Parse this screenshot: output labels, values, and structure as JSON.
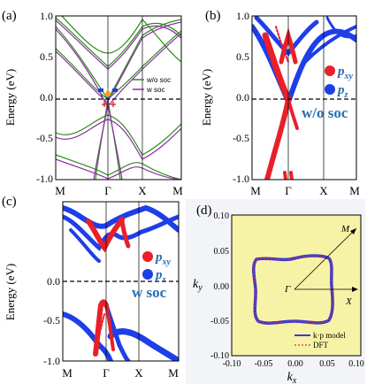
{
  "panels": {
    "a": {
      "letter": "(a)",
      "ylabel": "Energy (eV)",
      "yticks": [
        "1.0",
        "0.5",
        "0.0",
        "-0.5",
        "-1.0"
      ],
      "xticks": [
        "M",
        "Γ",
        "X",
        "M"
      ],
      "legend": [
        "w/o soc",
        "w soc"
      ],
      "colors": {
        "wo_soc": "#2e8b1e",
        "w_soc": "#8b2fa0",
        "marker_blue": "#1f3fd8",
        "marker_red": "#e5322d"
      }
    },
    "b": {
      "letter": "(b)",
      "yticks": [
        "1.0",
        "0.5",
        "0.0",
        "-0.5",
        "-1.0"
      ],
      "xticks": [
        "M",
        "Γ",
        "X",
        "M"
      ],
      "legend_pxy_main": "p",
      "legend_pxy_sub": "xy",
      "legend_pz_main": "p",
      "legend_pz_sub": "z",
      "tag": "w/o soc",
      "colors": {
        "pxy": "#e8202a",
        "pz": "#1e3ee8",
        "tag": "#2a6db0"
      }
    },
    "c": {
      "letter": "(c)",
      "ylabel": "Energy (eV)",
      "yticks": [
        "0.0",
        "-0.5",
        "-1.0"
      ],
      "xticks": [
        "M",
        "Γ",
        "X",
        "M"
      ],
      "legend_pxy_main": "p",
      "legend_pxy_sub": "xy",
      "legend_pz_main": "p",
      "legend_pz_sub": "z",
      "tag": "w soc"
    },
    "d": {
      "letter": "(d)",
      "xlabel_main": "k",
      "xlabel_sub": "x",
      "ylabel_main": "k",
      "ylabel_sub": "y",
      "xticks": [
        "-0.10",
        "-0.05",
        "0.00",
        "0.05",
        "0.10"
      ],
      "yticks": [
        "0.10",
        "0.05",
        "0.00",
        "-0.05",
        "-0.10"
      ],
      "point_gamma": "Γ",
      "point_m": "M",
      "point_x": "X",
      "legend_model": "k·p model",
      "legend_dft": "DFT",
      "colors": {
        "bg": "#f7f3a6",
        "model": "#3a3ad0",
        "dft": "#e0302a"
      }
    }
  }
}
